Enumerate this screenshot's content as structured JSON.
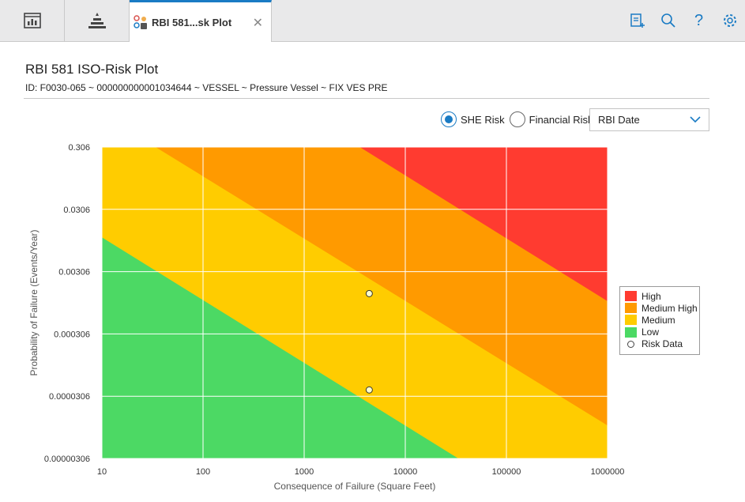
{
  "tabs": {
    "active_label": "RBI 581...sk Plot"
  },
  "page": {
    "title": "RBI 581 ISO-Risk Plot",
    "subtitle": "ID: F0030-065 ~ 000000000001034644 ~ VESSEL ~ Pressure Vessel ~ FIX VES PRE"
  },
  "controls": {
    "she_label": "SHE Risk",
    "financial_label": "Financial Risk",
    "selected": "SHE Risk",
    "date_select": "RBI Date"
  },
  "colors": {
    "high": "#ff3b30",
    "medium_high": "#ff9a00",
    "medium": "#ffcc00",
    "low": "#4cd964",
    "accent": "#1a7bc4"
  },
  "chart_data": {
    "type": "scatter",
    "xlabel": "Consequence of Failure (Square Feet)",
    "ylabel": "Probability of Failure (Events/Year)",
    "x_scale": "log",
    "y_scale": "log",
    "xlim": [
      10,
      1000000
    ],
    "ylim": [
      3.06e-06,
      0.306
    ],
    "x_ticks": [
      "10",
      "100",
      "1000",
      "10000",
      "100000",
      "1000000"
    ],
    "y_ticks": [
      "0.306",
      "0.0306",
      "0.00306",
      "0.000306",
      "0.0000306",
      "0.00000306"
    ],
    "grid": true,
    "legend_position": "right",
    "regions": [
      {
        "name": "High",
        "color_key": "high"
      },
      {
        "name": "Medium High",
        "color_key": "medium_high"
      },
      {
        "name": "Medium",
        "color_key": "medium"
      },
      {
        "name": "Low",
        "color_key": "low"
      }
    ],
    "series": [
      {
        "name": "Risk Data",
        "points": [
          {
            "x": 4400,
            "y": 0.00136
          },
          {
            "x": 4400,
            "y": 3.86e-05
          }
        ]
      }
    ]
  }
}
